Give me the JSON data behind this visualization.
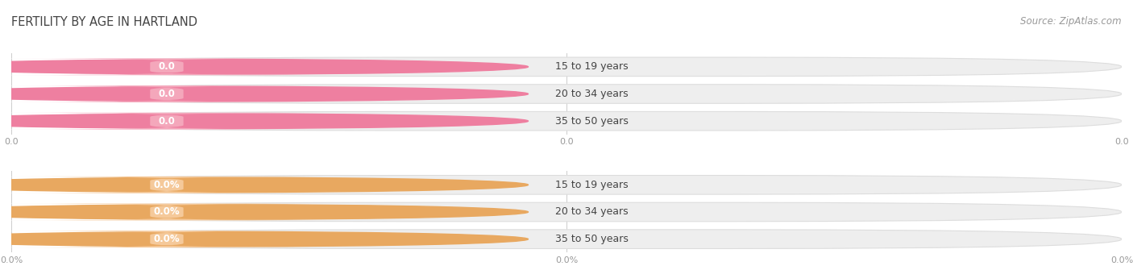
{
  "title": "FERTILITY BY AGE IN HARTLAND",
  "source": "Source: ZipAtlas.com",
  "top_group": {
    "categories": [
      "15 to 19 years",
      "20 to 34 years",
      "35 to 50 years"
    ],
    "values": [
      0.0,
      0.0,
      0.0
    ],
    "bar_color": "#f4a7bb",
    "circle_color": "#ee7fa0",
    "value_format": "0.0",
    "xtick_labels": [
      "0.0",
      "0.0",
      "0.0"
    ]
  },
  "bottom_group": {
    "categories": [
      "15 to 19 years",
      "20 to 34 years",
      "35 to 50 years"
    ],
    "values": [
      0.0,
      0.0,
      0.0
    ],
    "bar_color": "#f5c99a",
    "circle_color": "#e8a860",
    "value_format": "0.0%",
    "xtick_labels": [
      "0.0%",
      "0.0%",
      "0.0%"
    ]
  },
  "bg_bar_color": "#eeeeee",
  "bar_bg_edge_color": "#dddddd",
  "text_color": "#444444",
  "tick_color": "#999999",
  "grid_color": "#cccccc",
  "title_fontsize": 10.5,
  "source_fontsize": 8.5,
  "label_fontsize": 9,
  "value_fontsize": 8.5,
  "tick_fontsize": 8
}
